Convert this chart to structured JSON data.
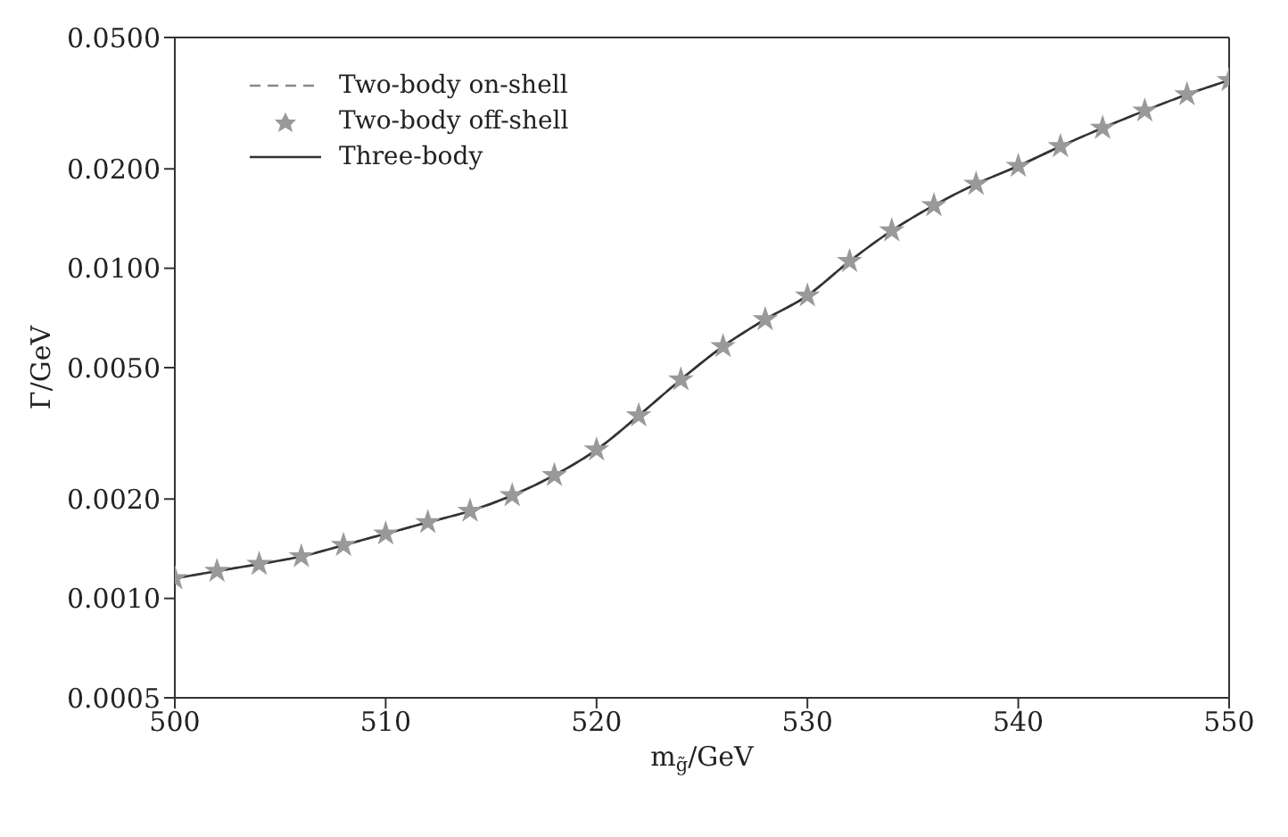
{
  "chart_data": {
    "type": "line",
    "xlabel": "m$_{g̃}$/GeV",
    "ylabel": "Γ/GeV",
    "log": "y",
    "x": [
      500,
      502,
      504,
      506,
      508,
      510,
      512,
      514,
      516,
      518,
      520,
      522,
      524,
      526,
      528,
      530,
      532,
      534,
      536,
      538,
      540,
      542,
      544,
      546,
      548,
      550
    ],
    "series": [
      {
        "name": "Two-body on-shell",
        "line_style": "dashed",
        "color": "#888888",
        "values": [
          0.00115,
          0.00121,
          0.00127,
          0.00134,
          0.00145,
          0.00157,
          0.0017,
          0.00184,
          0.00205,
          0.00236,
          0.00282,
          0.00358,
          0.0046,
          0.0058,
          0.007,
          0.00826,
          0.0105,
          0.013,
          0.0155,
          0.018,
          0.0204,
          0.0234,
          0.0266,
          0.03,
          0.0336,
          0.0371
        ]
      },
      {
        "name": "Two-body off-shell",
        "type": "scatter",
        "marker": "star",
        "color": "#999999",
        "values": [
          0.00115,
          0.00121,
          0.00127,
          0.00134,
          0.00145,
          0.00157,
          0.0017,
          0.00184,
          0.00205,
          0.00236,
          0.00282,
          0.00358,
          0.0046,
          0.0058,
          0.007,
          0.00826,
          0.0105,
          0.013,
          0.0155,
          0.018,
          0.0204,
          0.0234,
          0.0266,
          0.03,
          0.0336,
          0.0371
        ]
      },
      {
        "name": "Three-body",
        "line_style": "solid",
        "color": "#333333",
        "values": [
          0.00115,
          0.00121,
          0.00127,
          0.00134,
          0.00145,
          0.00157,
          0.0017,
          0.00184,
          0.00205,
          0.00236,
          0.00282,
          0.00358,
          0.0046,
          0.0058,
          0.007,
          0.00826,
          0.0105,
          0.013,
          0.0155,
          0.018,
          0.0204,
          0.0234,
          0.0266,
          0.03,
          0.0336,
          0.0371
        ]
      }
    ],
    "xlim": [
      500,
      550
    ],
    "xticks": [
      500,
      510,
      520,
      530,
      540,
      550
    ],
    "ylim": [
      0.0005,
      0.05
    ],
    "yticks": [
      {
        "value": 0.0005,
        "label": "0.0005"
      },
      {
        "value": 0.001,
        "label": "0.0010"
      },
      {
        "value": 0.002,
        "label": "0.0020"
      },
      {
        "value": 0.005,
        "label": "0.0050"
      },
      {
        "value": 0.01,
        "label": "0.0100"
      },
      {
        "value": 0.02,
        "label": "0.0200"
      },
      {
        "value": 0.05,
        "label": "0.0500"
      }
    ],
    "legend": "top left",
    "grid": false
  }
}
